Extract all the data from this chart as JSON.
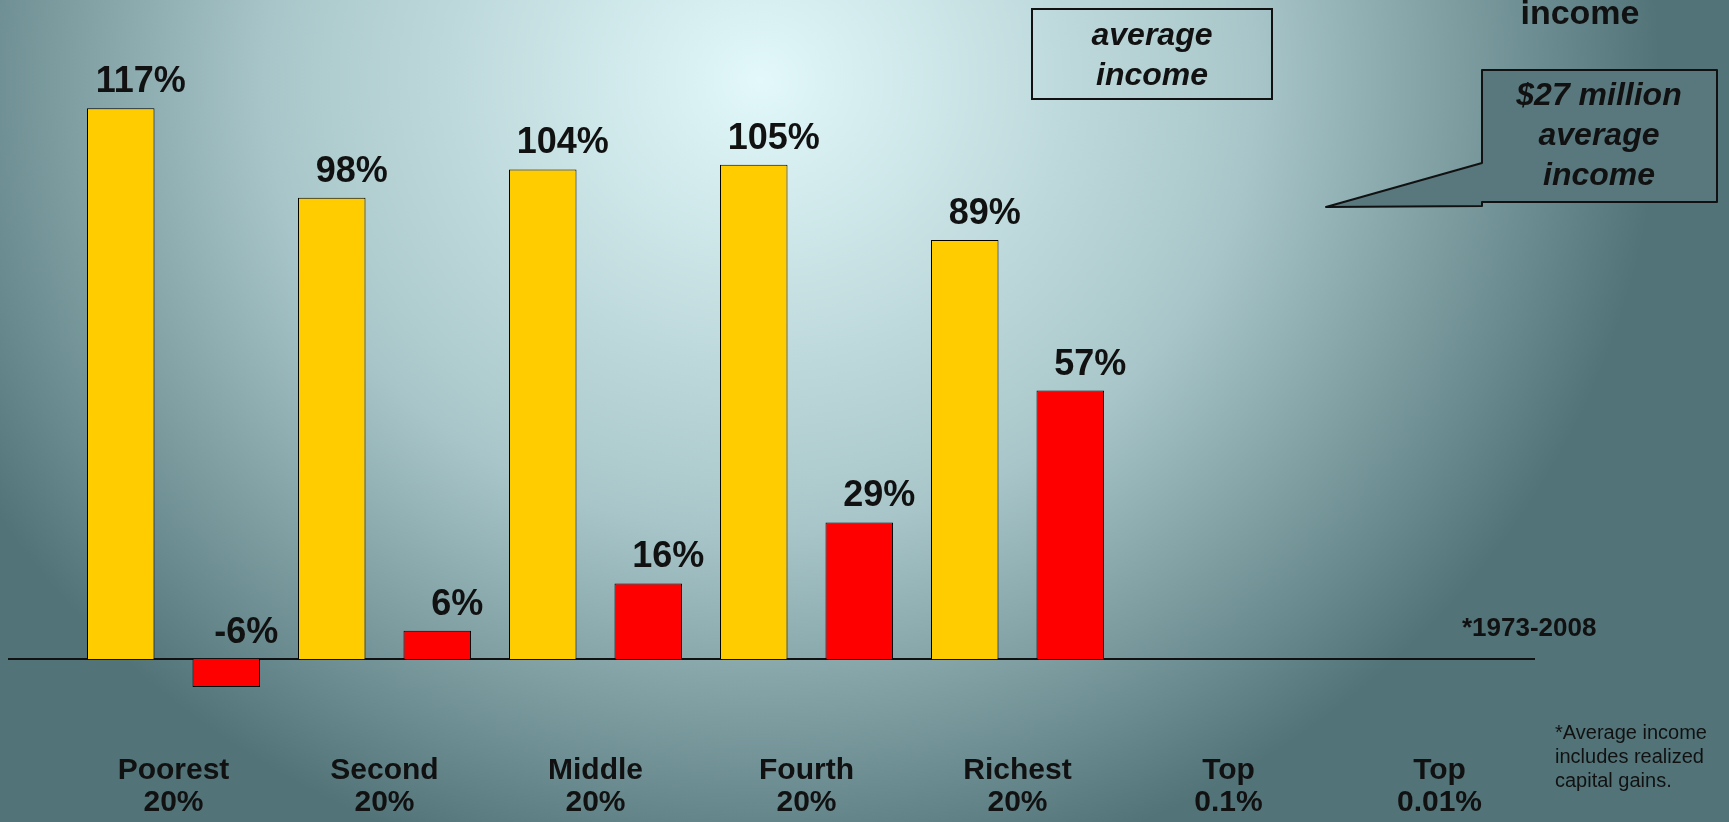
{
  "chart_data": {
    "type": "bar",
    "categories": [
      "Poorest 20%",
      "Second 20%",
      "Middle 20%",
      "Fourth 20%",
      "Richest 20%",
      "Top 0.1%",
      "Top 0.01%"
    ],
    "series": [
      {
        "color": "#ffcc00",
        "values": [
          117,
          98,
          104,
          105,
          89,
          null,
          null
        ],
        "value_labels": [
          "117%",
          "98%",
          "104%",
          "105%",
          "89%",
          null,
          null
        ]
      },
      {
        "color": "#ff0000",
        "values": [
          -6,
          6,
          16,
          29,
          57,
          null,
          null
        ],
        "value_labels": [
          "-6%",
          "6%",
          "16%",
          "29%",
          "57%",
          null,
          null
        ]
      }
    ],
    "tick_labels": "x",
    "grid": false,
    "legend": false,
    "annotations": [
      "average income",
      "income",
      "$27 million average income",
      "*1973-2008",
      "*Average income includes realized capital gains."
    ]
  }
}
